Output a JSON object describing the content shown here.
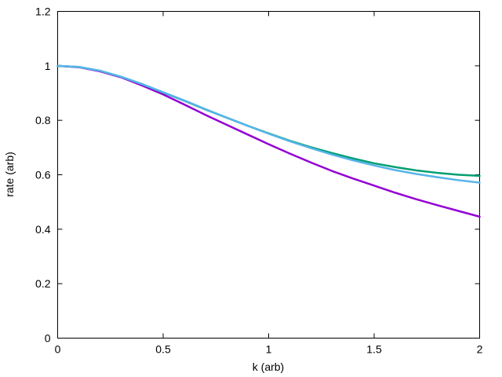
{
  "chart_data": {
    "type": "line",
    "title": "",
    "xlabel": "k (arb)",
    "ylabel": "rate (arb)",
    "xlim": [
      0,
      2
    ],
    "ylim": [
      0,
      1.2
    ],
    "grid": false,
    "legend": "none",
    "x_ticks": [
      0,
      0.5,
      1,
      1.5,
      2
    ],
    "x_tick_labels": [
      "0",
      "0.5",
      "1",
      "1.5",
      "2"
    ],
    "y_ticks": [
      0,
      0.2,
      0.4,
      0.6,
      0.8,
      1,
      1.2
    ],
    "y_tick_labels": [
      "0",
      "0.2",
      "0.4",
      "0.6",
      "0.8",
      "1",
      "1.2"
    ],
    "series": [
      {
        "color": "#9400d3",
        "x": [
          0,
          0.1,
          0.2,
          0.3,
          0.4,
          0.5,
          0.6,
          0.7,
          0.8,
          0.9,
          1.0,
          1.1,
          1.2,
          1.3,
          1.4,
          1.5,
          1.6,
          1.7,
          1.8,
          1.9,
          2.0
        ],
        "y": [
          1.0,
          0.995,
          0.98,
          0.958,
          0.928,
          0.895,
          0.858,
          0.82,
          0.784,
          0.748,
          0.712,
          0.678,
          0.645,
          0.614,
          0.586,
          0.56,
          0.534,
          0.51,
          0.488,
          0.467,
          0.446
        ]
      },
      {
        "color": "#009e73",
        "x": [
          0,
          0.1,
          0.2,
          0.3,
          0.4,
          0.5,
          0.6,
          0.7,
          0.8,
          0.9,
          1.0,
          1.1,
          1.2,
          1.3,
          1.4,
          1.5,
          1.6,
          1.7,
          1.8,
          1.9,
          2.0
        ],
        "y": [
          1.0,
          0.996,
          0.982,
          0.96,
          0.933,
          0.902,
          0.872,
          0.84,
          0.81,
          0.78,
          0.752,
          0.725,
          0.701,
          0.68,
          0.66,
          0.642,
          0.628,
          0.616,
          0.607,
          0.6,
          0.596
        ]
      },
      {
        "color": "#56b4e9",
        "x": [
          0,
          0.1,
          0.2,
          0.3,
          0.4,
          0.5,
          0.6,
          0.7,
          0.8,
          0.9,
          1.0,
          1.1,
          1.2,
          1.3,
          1.4,
          1.5,
          1.6,
          1.7,
          1.8,
          1.9,
          2.0
        ],
        "y": [
          1.0,
          0.996,
          0.982,
          0.96,
          0.933,
          0.903,
          0.873,
          0.841,
          0.81,
          0.78,
          0.751,
          0.723,
          0.698,
          0.674,
          0.653,
          0.634,
          0.617,
          0.603,
          0.591,
          0.58,
          0.571
        ]
      }
    ]
  }
}
